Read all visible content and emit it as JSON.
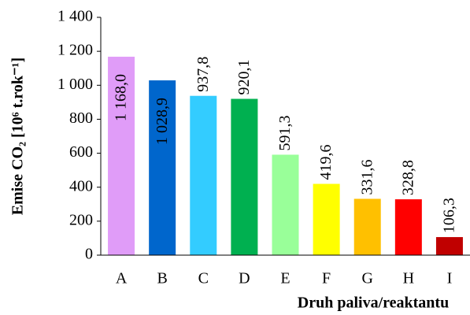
{
  "chart_data": {
    "type": "bar",
    "y_label": "Emise CO₂ [10⁶ t.rok⁻¹]",
    "x_label": "Druh paliva/reaktantu",
    "categories": [
      "A",
      "B",
      "C",
      "D",
      "E",
      "F",
      "G",
      "H",
      "I"
    ],
    "values": [
      1168.0,
      1028.9,
      937.8,
      920.1,
      591.3,
      419.6,
      331.6,
      328.8,
      106.3
    ],
    "value_labels": [
      "1 168,0",
      "1 028,9",
      "937,8",
      "920,1",
      "591,3",
      "419,6",
      "331,6",
      "328,8",
      "106,3"
    ],
    "colors": [
      "#e09cf8",
      "#0066cc",
      "#33ccff",
      "#00b050",
      "#99ff99",
      "#ffff00",
      "#ffc000",
      "#ff0000",
      "#c00000"
    ],
    "ylim": [
      0,
      1400
    ],
    "yticks": [
      0,
      200,
      400,
      600,
      800,
      {
        "value": 1000,
        "label": "1 000"
      },
      {
        "value": 1200,
        "label": "1 200"
      },
      {
        "value": 1400,
        "label": "1 400"
      }
    ],
    "grid": false
  }
}
